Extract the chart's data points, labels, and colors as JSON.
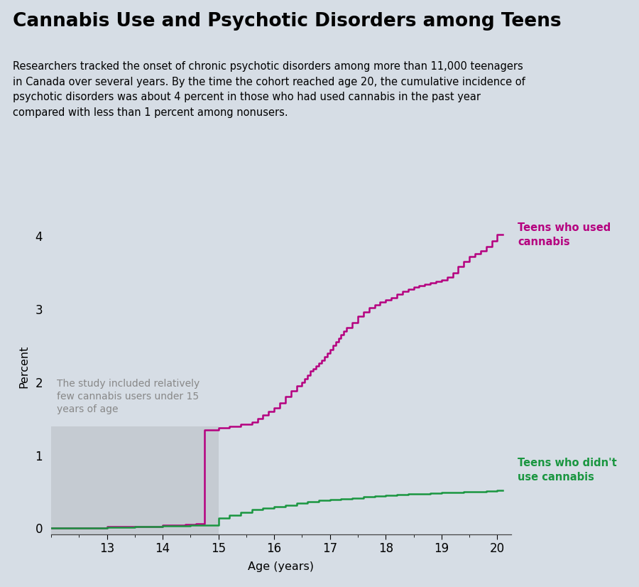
{
  "title": "Cannabis Use and Psychotic Disorders among Teens",
  "subtitle": "Researchers tracked the onset of chronic psychotic disorders among more than 11,000 teenagers\nin Canada over several years. By the time the cohort reached age 20, the cumulative incidence of\npsychotic disorders was about 4 percent in those who had used cannabis in the past year\ncompared with less than 1 percent among nonusers.",
  "xlabel": "Age (years)",
  "ylabel": "Percent",
  "background_color": "#d6dde5",
  "cannabis_color": "#b5007f",
  "no_cannabis_color": "#1a9640",
  "cannabis_label": "Teens who used\ncannabis",
  "no_cannabis_label": "Teens who didn't\nuse cannabis",
  "annotation_text": "The study included relatively\nfew cannabis users under 15\nyears of age",
  "xlim": [
    12.0,
    20.25
  ],
  "ylim": [
    -0.08,
    4.5
  ],
  "xticks": [
    13,
    14,
    15,
    16,
    17,
    18,
    19,
    20
  ],
  "yticks": [
    0,
    1,
    2,
    3,
    4
  ],
  "cannabis_x": [
    12.0,
    12.5,
    13.0,
    13.5,
    14.0,
    14.4,
    14.6,
    14.75,
    14.75,
    15.0,
    15.2,
    15.4,
    15.6,
    15.7,
    15.8,
    15.9,
    16.0,
    16.1,
    16.2,
    16.3,
    16.4,
    16.5,
    16.55,
    16.6,
    16.65,
    16.7,
    16.75,
    16.8,
    16.85,
    16.9,
    16.95,
    17.0,
    17.05,
    17.1,
    17.15,
    17.2,
    17.25,
    17.3,
    17.4,
    17.5,
    17.6,
    17.7,
    17.8,
    17.9,
    18.0,
    18.1,
    18.2,
    18.3,
    18.4,
    18.5,
    18.6,
    18.7,
    18.8,
    18.9,
    19.0,
    19.1,
    19.2,
    19.3,
    19.4,
    19.5,
    19.6,
    19.7,
    19.8,
    19.9,
    20.0,
    20.1
  ],
  "cannabis_y": [
    0.0,
    0.0,
    0.02,
    0.02,
    0.04,
    0.05,
    0.06,
    0.06,
    1.35,
    1.38,
    1.4,
    1.42,
    1.45,
    1.5,
    1.55,
    1.6,
    1.65,
    1.72,
    1.8,
    1.88,
    1.95,
    2.0,
    2.05,
    2.1,
    2.15,
    2.18,
    2.22,
    2.26,
    2.3,
    2.35,
    2.4,
    2.45,
    2.5,
    2.55,
    2.6,
    2.65,
    2.7,
    2.75,
    2.82,
    2.9,
    2.96,
    3.02,
    3.06,
    3.1,
    3.13,
    3.16,
    3.2,
    3.24,
    3.27,
    3.3,
    3.32,
    3.34,
    3.36,
    3.38,
    3.4,
    3.44,
    3.5,
    3.58,
    3.65,
    3.72,
    3.76,
    3.8,
    3.86,
    3.93,
    4.02,
    4.02
  ],
  "no_cannabis_x": [
    12.0,
    12.5,
    13.0,
    13.5,
    14.0,
    14.5,
    14.75,
    15.0,
    15.2,
    15.4,
    15.6,
    15.8,
    16.0,
    16.2,
    16.4,
    16.6,
    16.8,
    17.0,
    17.2,
    17.4,
    17.6,
    17.8,
    18.0,
    18.2,
    18.4,
    18.6,
    18.8,
    19.0,
    19.2,
    19.4,
    19.6,
    19.8,
    20.0,
    20.1
  ],
  "no_cannabis_y": [
    0.0,
    0.0,
    0.01,
    0.02,
    0.03,
    0.04,
    0.04,
    0.14,
    0.18,
    0.22,
    0.26,
    0.28,
    0.3,
    0.32,
    0.34,
    0.36,
    0.38,
    0.39,
    0.4,
    0.41,
    0.43,
    0.44,
    0.45,
    0.46,
    0.47,
    0.47,
    0.48,
    0.49,
    0.49,
    0.5,
    0.5,
    0.51,
    0.52,
    0.52
  ]
}
